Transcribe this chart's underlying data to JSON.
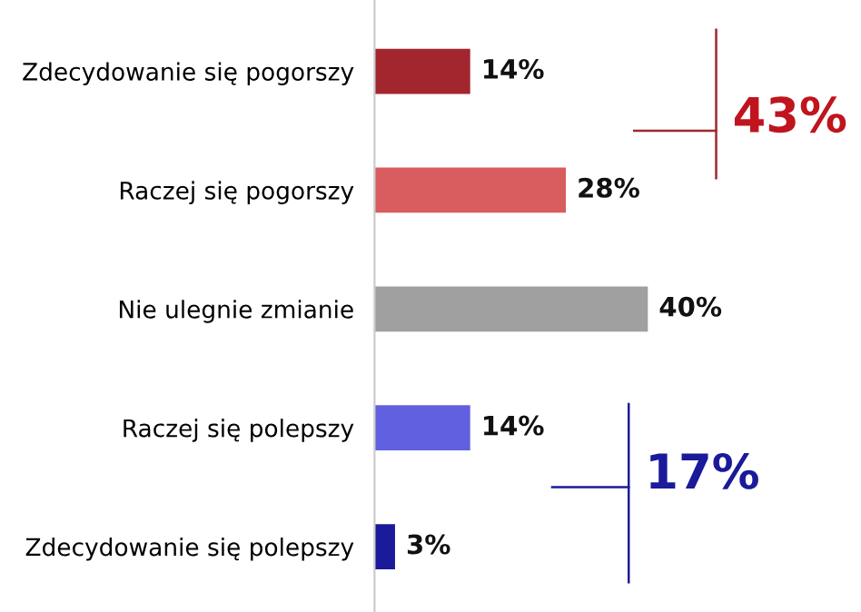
{
  "chart_data": {
    "type": "bar",
    "orientation": "horizontal",
    "categories": [
      "Zdecydowanie się pogorszy",
      "Raczej się pogorszy",
      "Nie ulegnie zmianie",
      "Raczej się polepszy",
      "Zdecydowanie się polepszy"
    ],
    "values": [
      14,
      28,
      40,
      14,
      3
    ],
    "colors": [
      "#a3262f",
      "#d95c5f",
      "#a0a0a0",
      "#6060e0",
      "#1a1a9a"
    ],
    "value_labels": [
      "14%",
      "28%",
      "40%",
      "14%",
      "3%"
    ],
    "annotations": [
      "43%",
      "17%"
    ],
    "tick_labels": "y",
    "grid": false
  }
}
